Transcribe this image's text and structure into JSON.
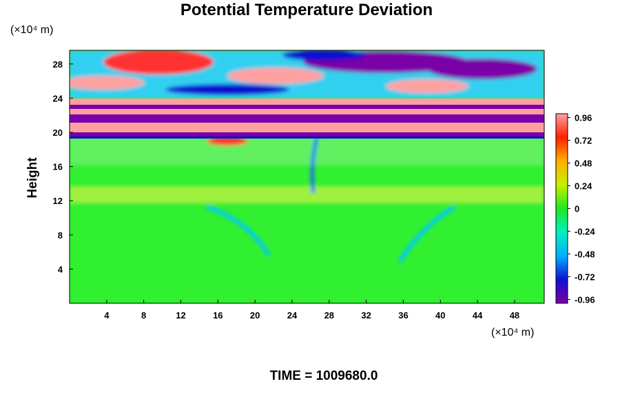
{
  "chart_data": {
    "type": "heatmap",
    "title": "Potential Temperature Deviation",
    "y_label": "Height",
    "x_unit": "(×10⁴ m)",
    "y_unit": "(×10⁴ m)",
    "caption": "TIME = 1009680.0",
    "xlim": [
      0,
      51.2
    ],
    "xticks": [
      4,
      8,
      12,
      16,
      20,
      24,
      28,
      32,
      36,
      40,
      44,
      48
    ],
    "ylim": [
      0,
      29.6
    ],
    "yticks": [
      4,
      8,
      12,
      16,
      20,
      24,
      28
    ],
    "clim": [
      -1,
      1
    ],
    "cticks": [
      0.96,
      0.72,
      0.48,
      0.24,
      0,
      -0.24,
      -0.48,
      -0.72,
      -0.96
    ],
    "colormap": [
      "#7a00a8",
      "#1010d0",
      "#00b0ff",
      "#00f0c0",
      "#20e820",
      "#c8f000",
      "#ffb000",
      "#ff2000",
      "#ffa0a0"
    ]
  }
}
